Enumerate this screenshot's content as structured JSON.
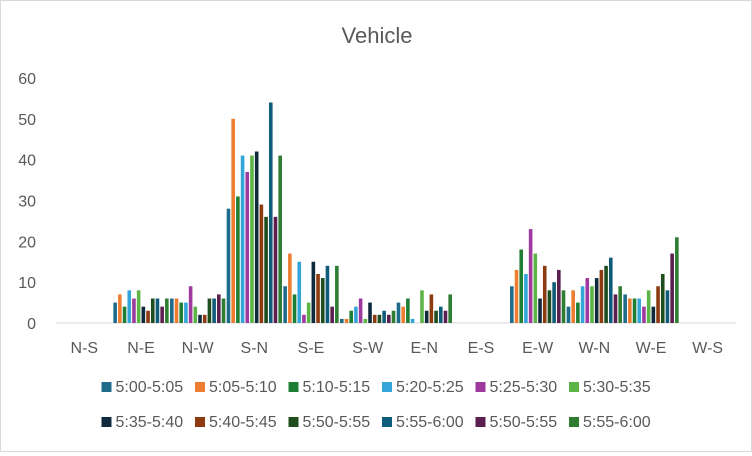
{
  "chart_data": {
    "type": "bar",
    "title": "Vehicle",
    "xlabel": "",
    "ylabel": "",
    "ylim": [
      0,
      60
    ],
    "yticks": [
      0,
      10,
      20,
      30,
      40,
      50,
      60
    ],
    "grid": false,
    "legend_position": "bottom",
    "categories": [
      "N-S",
      "N-E",
      "N-W",
      "S-N",
      "S-E",
      "S-W",
      "E-N",
      "E-S",
      "E-W",
      "W-N",
      "W-E",
      "W-S"
    ],
    "series": [
      {
        "name": "5:00-5:05",
        "color": "#1f6b8a",
        "values": [
          0,
          5,
          6,
          28,
          9,
          1,
          5,
          0,
          9,
          4,
          7,
          0
        ]
      },
      {
        "name": "5:05-5:10",
        "color": "#ed7d31",
        "values": [
          0,
          7,
          6,
          50,
          17,
          1,
          4,
          0,
          13,
          8,
          6,
          0
        ]
      },
      {
        "name": "5:10-5:15",
        "color": "#1e7e34",
        "values": [
          0,
          4,
          5,
          31,
          7,
          3,
          6,
          0,
          18,
          5,
          6,
          0
        ]
      },
      {
        "name": "5:20-5:25",
        "color": "#33a5d9",
        "values": [
          0,
          8,
          5,
          41,
          15,
          4,
          1,
          0,
          12,
          9,
          6,
          0
        ]
      },
      {
        "name": "5:25-5:30",
        "color": "#9e3a9e",
        "values": [
          0,
          6,
          9,
          37,
          2,
          6,
          0,
          0,
          23,
          11,
          4,
          0
        ]
      },
      {
        "name": "5:30-5:35",
        "color": "#5cb346",
        "values": [
          0,
          8,
          4,
          41,
          5,
          1,
          8,
          0,
          17,
          9,
          8,
          0
        ]
      },
      {
        "name": "5:35-5:40",
        "color": "#0f2a3c",
        "values": [
          0,
          4,
          2,
          42,
          15,
          5,
          3,
          0,
          6,
          11,
          4,
          0
        ]
      },
      {
        "name": "5:40-5:45",
        "color": "#8c3a0f",
        "values": [
          0,
          3,
          2,
          29,
          12,
          2,
          7,
          0,
          14,
          13,
          9,
          0
        ]
      },
      {
        "name": "5:50-5:55",
        "color": "#1e4d1e",
        "values": [
          0,
          6,
          6,
          26,
          11,
          2,
          3,
          0,
          8,
          14,
          12,
          0
        ]
      },
      {
        "name": "5:55-6:00",
        "color": "#0f5c7a",
        "values": [
          0,
          6,
          6,
          54,
          14,
          3,
          4,
          0,
          10,
          16,
          8,
          0
        ]
      },
      {
        "name": "5:50-5:55",
        "color": "#5a1f4f",
        "values": [
          0,
          4,
          7,
          26,
          4,
          2,
          3,
          0,
          13,
          7,
          17,
          0
        ]
      },
      {
        "name": "5:55-6:00",
        "color": "#2e7d32",
        "values": [
          0,
          6,
          6,
          41,
          14,
          3,
          7,
          0,
          8,
          9,
          21,
          0
        ]
      }
    ]
  }
}
